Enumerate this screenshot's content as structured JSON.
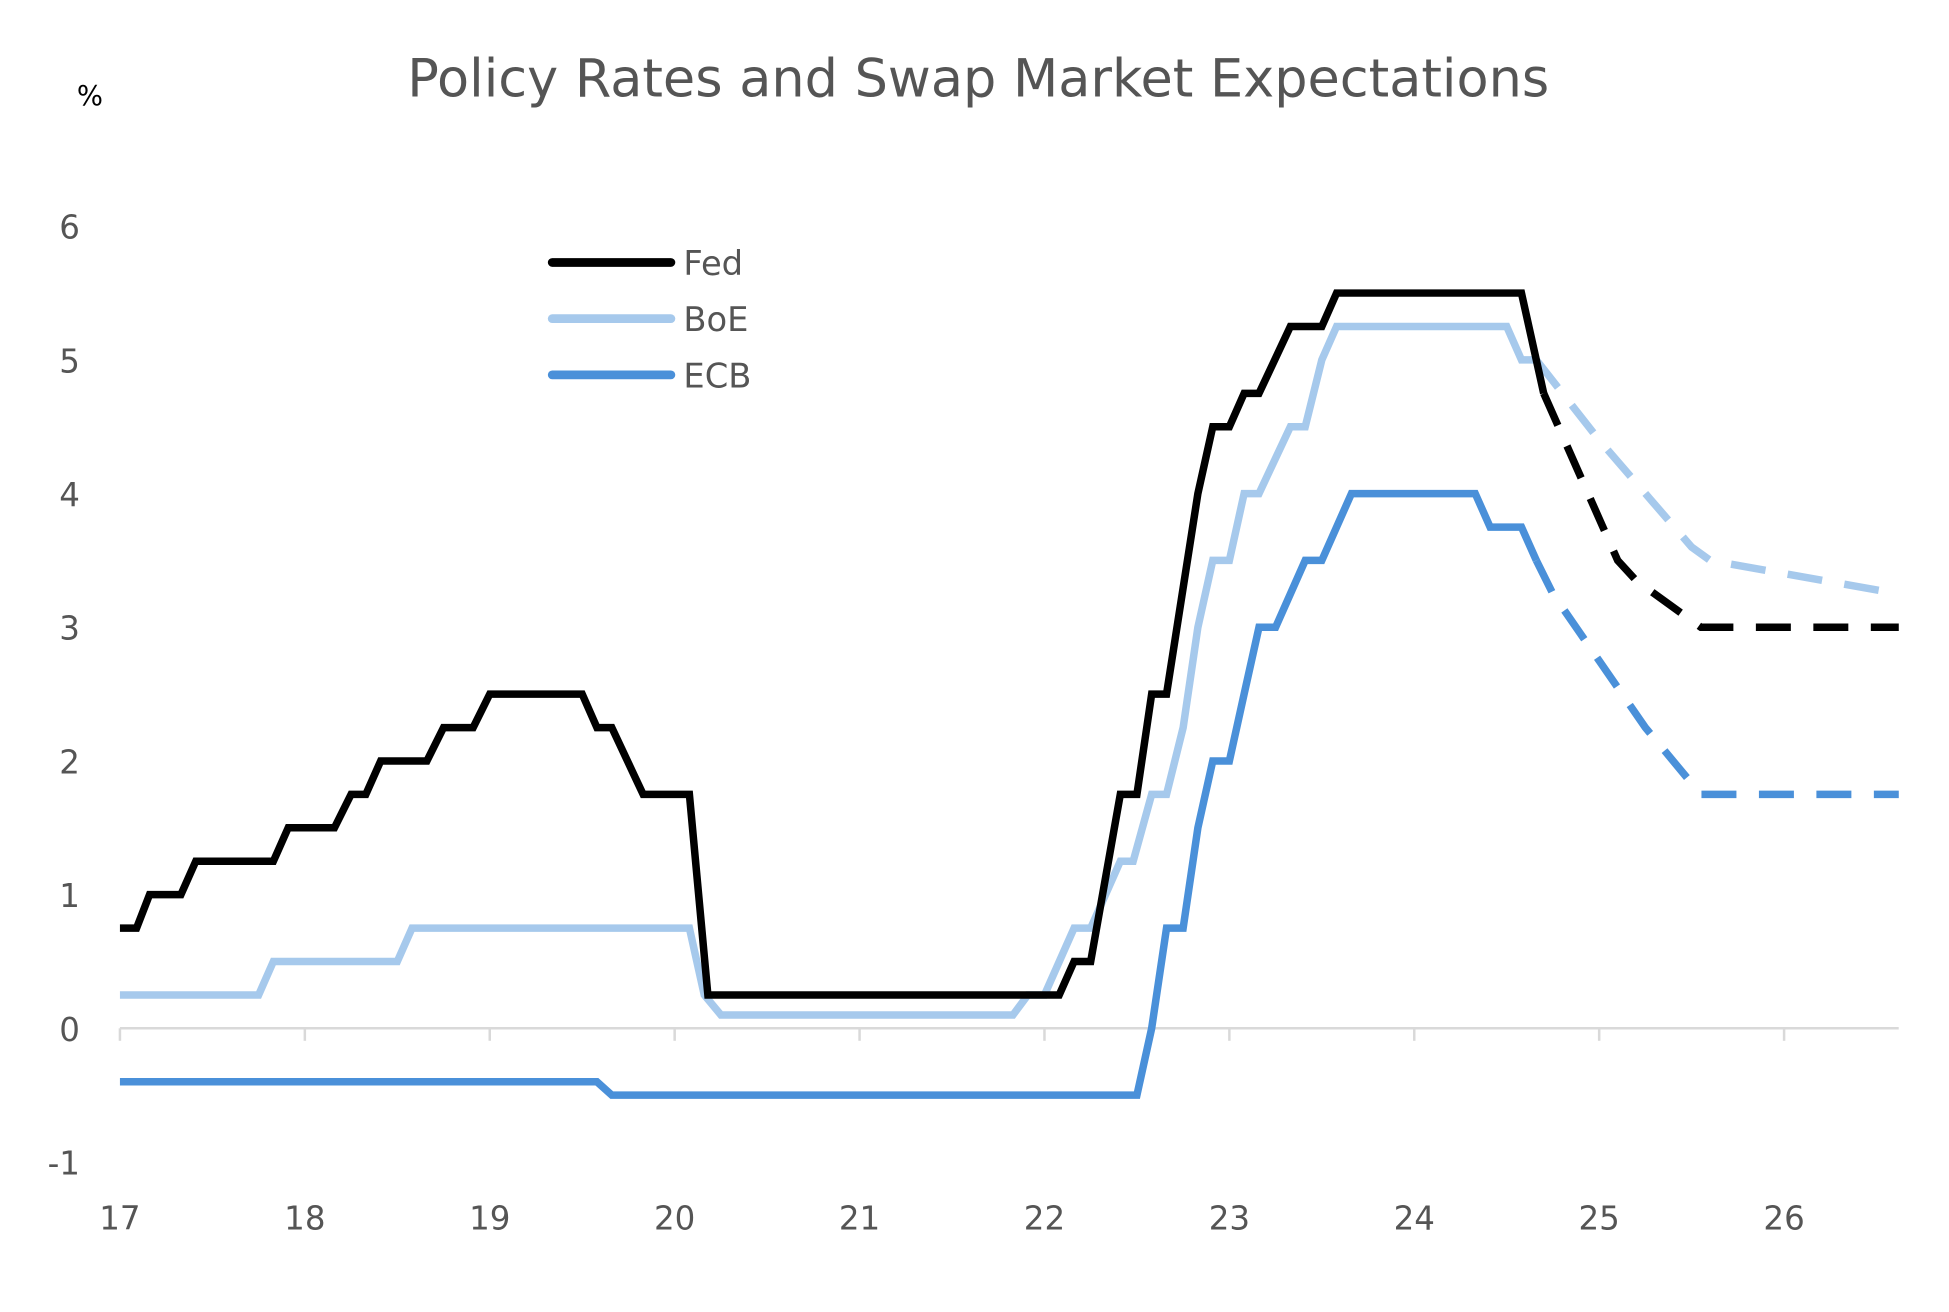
{
  "chart_data": {
    "type": "line",
    "title": "Policy Rates and Swap Market Expectations",
    "ylabel": "%",
    "xlabel": "",
    "xlim": [
      17,
      26.62
    ],
    "ylim": [
      -1,
      6
    ],
    "x_ticks": [
      "17",
      "18",
      "19",
      "20",
      "21",
      "22",
      "23",
      "24",
      "25",
      "26"
    ],
    "y_ticks": [
      "-1",
      "0",
      "1",
      "2",
      "3",
      "4",
      "5",
      "6"
    ],
    "legend_placement": "top-left",
    "grid": false,
    "series": [
      {
        "name": "Fed",
        "color": "#000000",
        "actual": [
          [
            17,
            0.75
          ],
          [
            17.09,
            0.75
          ],
          [
            17.16,
            1.0
          ],
          [
            17.33,
            1.0
          ],
          [
            17.41,
            1.25
          ],
          [
            17.83,
            1.25
          ],
          [
            17.91,
            1.5
          ],
          [
            18.16,
            1.5
          ],
          [
            18.25,
            1.75
          ],
          [
            18.33,
            1.75
          ],
          [
            18.41,
            2.0
          ],
          [
            18.66,
            2.0
          ],
          [
            18.75,
            2.25
          ],
          [
            18.91,
            2.25
          ],
          [
            19.0,
            2.5
          ],
          [
            19.5,
            2.5
          ],
          [
            19.58,
            2.25
          ],
          [
            19.66,
            2.25
          ],
          [
            19.83,
            1.75
          ],
          [
            20.08,
            1.75
          ],
          [
            20.18,
            0.25
          ],
          [
            22.08,
            0.25
          ],
          [
            22.16,
            0.5
          ],
          [
            22.25,
            0.5
          ],
          [
            22.41,
            1.75
          ],
          [
            22.5,
            1.75
          ],
          [
            22.58,
            2.5
          ],
          [
            22.66,
            2.5
          ],
          [
            22.83,
            4.0
          ],
          [
            22.91,
            4.5
          ],
          [
            23.0,
            4.5
          ],
          [
            23.08,
            4.75
          ],
          [
            23.16,
            4.75
          ],
          [
            23.33,
            5.25
          ],
          [
            23.5,
            5.25
          ],
          [
            23.58,
            5.5
          ],
          [
            24.58,
            5.5
          ],
          [
            24.7,
            4.75
          ]
        ],
        "expected": [
          [
            24.7,
            4.75
          ],
          [
            25.1,
            3.5
          ],
          [
            25.2,
            3.35
          ],
          [
            25.55,
            3.0
          ],
          [
            26.62,
            3.0
          ]
        ]
      },
      {
        "name": "BoE",
        "color": "#a6c9ec",
        "actual": [
          [
            17,
            0.25
          ],
          [
            17.75,
            0.25
          ],
          [
            17.83,
            0.5
          ],
          [
            18.5,
            0.5
          ],
          [
            18.58,
            0.75
          ],
          [
            20.08,
            0.75
          ],
          [
            20.16,
            0.25
          ],
          [
            20.25,
            0.1
          ],
          [
            21.83,
            0.1
          ],
          [
            21.91,
            0.25
          ],
          [
            22.0,
            0.25
          ],
          [
            22.16,
            0.75
          ],
          [
            22.25,
            0.75
          ],
          [
            22.41,
            1.25
          ],
          [
            22.48,
            1.25
          ],
          [
            22.58,
            1.75
          ],
          [
            22.66,
            1.75
          ],
          [
            22.75,
            2.25
          ],
          [
            22.83,
            3.0
          ],
          [
            22.91,
            3.5
          ],
          [
            23.0,
            3.5
          ],
          [
            23.08,
            4.0
          ],
          [
            23.16,
            4.0
          ],
          [
            23.33,
            4.5
          ],
          [
            23.41,
            4.5
          ],
          [
            23.5,
            5.0
          ],
          [
            23.58,
            5.25
          ],
          [
            24.5,
            5.25
          ],
          [
            24.58,
            5.0
          ],
          [
            24.66,
            5.0
          ]
        ],
        "expected": [
          [
            24.66,
            5.0
          ],
          [
            25.0,
            4.4
          ],
          [
            25.5,
            3.6
          ],
          [
            25.6,
            3.5
          ],
          [
            26.62,
            3.25
          ]
        ]
      },
      {
        "name": "ECB",
        "color": "#4a90d9",
        "actual": [
          [
            17,
            -0.4
          ],
          [
            19.58,
            -0.4
          ],
          [
            19.66,
            -0.5
          ],
          [
            22.5,
            -0.5
          ],
          [
            22.58,
            0.0
          ],
          [
            22.66,
            0.75
          ],
          [
            22.75,
            0.75
          ],
          [
            22.83,
            1.5
          ],
          [
            22.91,
            2.0
          ],
          [
            23.0,
            2.0
          ],
          [
            23.08,
            2.5
          ],
          [
            23.16,
            3.0
          ],
          [
            23.25,
            3.0
          ],
          [
            23.41,
            3.5
          ],
          [
            23.5,
            3.5
          ],
          [
            23.66,
            4.0
          ],
          [
            24.33,
            4.0
          ],
          [
            24.41,
            3.75
          ],
          [
            24.58,
            3.75
          ],
          [
            24.66,
            3.5
          ]
        ],
        "expected": [
          [
            24.66,
            3.5
          ],
          [
            24.75,
            3.25
          ],
          [
            25.0,
            2.75
          ],
          [
            25.25,
            2.25
          ],
          [
            25.55,
            1.75
          ],
          [
            26.62,
            1.75
          ]
        ]
      }
    ]
  }
}
